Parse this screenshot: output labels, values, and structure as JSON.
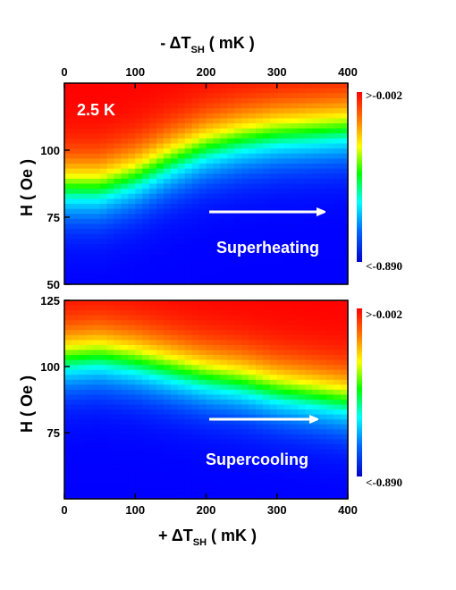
{
  "chart_data": {
    "type": "heatmap",
    "top_axis_label": "- ΔT",
    "top_axis_label_sub": "SH",
    "top_axis_label_unit": " ( mK )",
    "bottom_axis_label": "+ ΔT",
    "bottom_axis_label_sub": "SH",
    "bottom_axis_label_unit": " ( mK )",
    "ylabel": "H ( Oe )",
    "x_ticks": [
      "0",
      "100",
      "200",
      "300",
      "400"
    ],
    "xlim": [
      0,
      400
    ],
    "colorscale": [
      "#0000ff",
      "#0080ff",
      "#00ffff",
      "#00ff00",
      "#ffff00",
      "#ff8000",
      "#ff0000"
    ],
    "panels": [
      {
        "temperature_label": "2.5 K",
        "annotation": "Superheating",
        "arrow_direction": "right",
        "y_ticks": [
          "50",
          "75",
          "100"
        ],
        "y_tick_values": [
          50,
          75,
          100
        ],
        "ylim": [
          50,
          125
        ],
        "colorbar_max_label": ">-0.002",
        "colorbar_min_label": "<-0.890",
        "transition_x": [
          0,
          50,
          100,
          150,
          200,
          250,
          300,
          350,
          400
        ],
        "transition_H": [
          86,
          86,
          90,
          96,
          101,
          104,
          106,
          107,
          108
        ]
      },
      {
        "temperature_label": "",
        "annotation": "Supercooling",
        "arrow_direction": "right",
        "y_ticks": [
          "75",
          "100",
          "125"
        ],
        "y_tick_values": [
          75,
          100,
          125
        ],
        "ylim": [
          50,
          125
        ],
        "colorbar_max_label": ">-0.002",
        "colorbar_min_label": "<-0.890",
        "transition_x": [
          0,
          50,
          100,
          150,
          200,
          250,
          300,
          350,
          400
        ],
        "transition_H": [
          103,
          104,
          102,
          99,
          96,
          94,
          91,
          89,
          87
        ]
      }
    ]
  }
}
